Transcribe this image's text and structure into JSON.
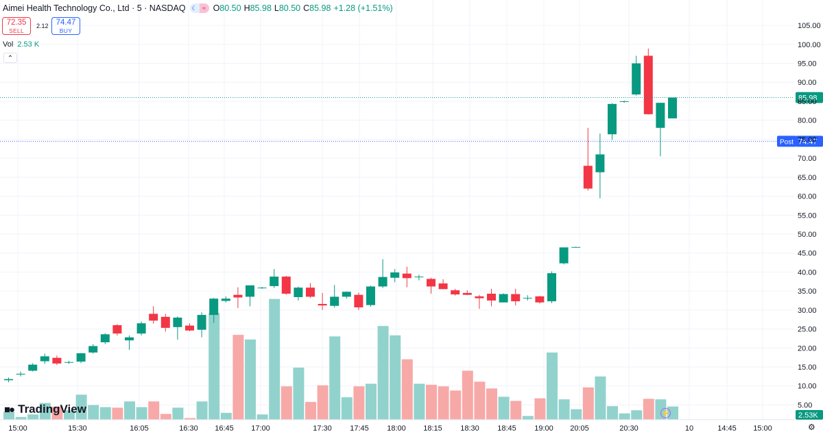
{
  "header": {
    "title": "Aimei Health Technology Co., Ltd · 5 · NASDAQ",
    "open_label": "O",
    "open": "80.50",
    "high_label": "H",
    "high": "85.98",
    "low_label": "L",
    "low": "80.50",
    "close_label": "C",
    "close": "85.98",
    "change": "+1.28 (+1.51%)"
  },
  "trade": {
    "sell_price": "72.35",
    "sell_label": "SELL",
    "spread": "2.12",
    "buy_price": "74.47",
    "buy_label": "BUY"
  },
  "volume_legend": {
    "label": "Vol",
    "value": "2.53 K"
  },
  "branding": {
    "name": "TradingView",
    "settings_icon": "gear-icon",
    "replay_icon": "lightning-icon"
  },
  "colors": {
    "up": "#089981",
    "down": "#f23645",
    "vol_up": "#92d2cc",
    "vol_down": "#f7a9a7",
    "post": "#2962ff"
  },
  "chart_data": {
    "type": "candlestick",
    "title": "Aimei Health Technology Co., Ltd · 5 · NASDAQ",
    "y_range": [
      4,
      107
    ],
    "y_ticks": [
      "105.00",
      "100.00",
      "95.00",
      "90.00",
      "85.00",
      "80.00",
      "75.00",
      "70.00",
      "65.00",
      "60.00",
      "55.00",
      "50.00",
      "45.00",
      "40.00",
      "35.00",
      "30.00",
      "25.00",
      "20.00",
      "15.00",
      "10.00",
      "5.00"
    ],
    "x_ticks": [
      "15:00",
      "15:30",
      "16:05",
      "16:30",
      "16:45",
      "17:00",
      "17:30",
      "17:45",
      "18:00",
      "18:15",
      "18:30",
      "18:45",
      "19:00",
      "20:05",
      "20:30",
      "10",
      "14:45",
      "15:00"
    ],
    "price_line": {
      "label": "85.98",
      "value": 85.98
    },
    "post_line": {
      "tag": "Post",
      "label": "74.47",
      "value": 74.47
    },
    "volume_label": "2.53K",
    "candles": [
      {
        "o": 11.5,
        "h": 12.2,
        "l": 11.0,
        "c": 11.8,
        "v": 1.5
      },
      {
        "o": 13.0,
        "h": 13.8,
        "l": 12.5,
        "c": 13.2,
        "v": 0.5
      },
      {
        "o": 14.0,
        "h": 16.0,
        "l": 13.8,
        "c": 15.6,
        "v": 1.0
      },
      {
        "o": 16.5,
        "h": 18.5,
        "l": 15.8,
        "c": 17.8,
        "v": 3.2
      },
      {
        "o": 17.4,
        "h": 18.0,
        "l": 15.5,
        "c": 15.9,
        "v": 2.5
      },
      {
        "o": 16.2,
        "h": 16.6,
        "l": 15.8,
        "c": 16.3,
        "v": 1.8
      },
      {
        "o": 16.4,
        "h": 18.7,
        "l": 16.0,
        "c": 18.6,
        "v": 4.8
      },
      {
        "o": 18.8,
        "h": 21.0,
        "l": 18.5,
        "c": 20.5,
        "v": 2.8
      },
      {
        "o": 21.5,
        "h": 23.9,
        "l": 21.0,
        "c": 23.6,
        "v": 2.4
      },
      {
        "o": 26.0,
        "h": 26.3,
        "l": 23.3,
        "c": 23.8,
        "v": 2.3
      },
      {
        "o": 22.0,
        "h": 23.3,
        "l": 19.5,
        "c": 22.8,
        "v": 3.5
      },
      {
        "o": 23.8,
        "h": 27.0,
        "l": 23.3,
        "c": 26.5,
        "v": 2.4
      },
      {
        "o": 29.0,
        "h": 31.0,
        "l": 26.4,
        "c": 27.2,
        "v": 3.5
      },
      {
        "o": 28.2,
        "h": 29.0,
        "l": 24.3,
        "c": 25.3,
        "v": 1.1
      },
      {
        "o": 25.5,
        "h": 28.3,
        "l": 22.2,
        "c": 28.0,
        "v": 2.3
      },
      {
        "o": 25.9,
        "h": 26.5,
        "l": 24.4,
        "c": 24.6,
        "v": 0.3
      },
      {
        "o": 24.8,
        "h": 29.4,
        "l": 22.8,
        "c": 28.7,
        "v": 3.5
      },
      {
        "o": 28.7,
        "h": 33.2,
        "l": 26.6,
        "c": 33.0,
        "v": 20.5
      },
      {
        "o": 32.4,
        "h": 33.6,
        "l": 32.0,
        "c": 33.0,
        "v": 1.3
      },
      {
        "o": 34.0,
        "h": 36.0,
        "l": 30.5,
        "c": 33.3,
        "v": 16.3
      },
      {
        "o": 33.5,
        "h": 36.3,
        "l": 31.0,
        "c": 36.5,
        "v": 15.4
      },
      {
        "o": 35.8,
        "h": 36.1,
        "l": 35.6,
        "c": 35.9,
        "v": 1.0
      },
      {
        "o": 36.3,
        "h": 40.8,
        "l": 35.8,
        "c": 38.8,
        "v": 23.2
      },
      {
        "o": 38.8,
        "h": 39.0,
        "l": 34.0,
        "c": 34.3,
        "v": 6.4
      },
      {
        "o": 33.4,
        "h": 36.2,
        "l": 32.5,
        "c": 35.9,
        "v": 10.0
      },
      {
        "o": 35.9,
        "h": 37.1,
        "l": 33.2,
        "c": 33.5,
        "v": 3.4
      },
      {
        "o": 31.6,
        "h": 34.5,
        "l": 30.0,
        "c": 31.2,
        "v": 6.6
      },
      {
        "o": 31.1,
        "h": 36.6,
        "l": 30.6,
        "c": 33.5,
        "v": 16.0
      },
      {
        "o": 33.5,
        "h": 34.9,
        "l": 33.0,
        "c": 34.8,
        "v": 4.3
      },
      {
        "o": 34.0,
        "h": 34.6,
        "l": 30.0,
        "c": 30.7,
        "v": 6.4
      },
      {
        "o": 31.3,
        "h": 36.4,
        "l": 30.9,
        "c": 36.2,
        "v": 6.9
      },
      {
        "o": 36.2,
        "h": 43.4,
        "l": 35.8,
        "c": 38.7,
        "v": 18.0
      },
      {
        "o": 38.5,
        "h": 40.8,
        "l": 37.3,
        "c": 39.9,
        "v": 16.2
      },
      {
        "o": 39.6,
        "h": 41.4,
        "l": 36.0,
        "c": 38.4,
        "v": 11.6
      },
      {
        "o": 38.7,
        "h": 39.3,
        "l": 37.8,
        "c": 38.8,
        "v": 6.9
      },
      {
        "o": 38.2,
        "h": 38.5,
        "l": 34.3,
        "c": 36.2,
        "v": 6.7
      },
      {
        "o": 37.0,
        "h": 38.1,
        "l": 35.7,
        "c": 35.5,
        "v": 6.4
      },
      {
        "o": 35.2,
        "h": 35.6,
        "l": 33.8,
        "c": 34.1,
        "v": 5.6
      },
      {
        "o": 34.5,
        "h": 35.2,
        "l": 33.9,
        "c": 34.0,
        "v": 9.4
      },
      {
        "o": 33.6,
        "h": 34.0,
        "l": 30.3,
        "c": 33.1,
        "v": 7.3
      },
      {
        "o": 34.3,
        "h": 35.6,
        "l": 31.0,
        "c": 32.5,
        "v": 6.0
      },
      {
        "o": 32.0,
        "h": 34.4,
        "l": 32.0,
        "c": 34.2,
        "v": 4.4
      },
      {
        "o": 34.2,
        "h": 35.6,
        "l": 31.2,
        "c": 32.3,
        "v": 3.6
      },
      {
        "o": 33.1,
        "h": 33.9,
        "l": 32.5,
        "c": 33.2,
        "v": 0.7
      },
      {
        "o": 33.6,
        "h": 33.7,
        "l": 31.7,
        "c": 32.0,
        "v": 4.1
      },
      {
        "o": 32.3,
        "h": 40.2,
        "l": 31.8,
        "c": 39.7,
        "v": 12.9
      },
      {
        "o": 42.3,
        "h": 46.5,
        "l": 42.0,
        "c": 46.5,
        "v": 3.9
      },
      {
        "o": 46.6,
        "h": 46.7,
        "l": 46.5,
        "c": 46.6,
        "v": 2.0
      },
      {
        "o": 68.0,
        "h": 78.0,
        "l": 61.5,
        "c": 62.0,
        "v": 6.2
      },
      {
        "o": 66.3,
        "h": 76.5,
        "l": 59.4,
        "c": 71.0,
        "v": 8.3
      },
      {
        "o": 76.3,
        "h": 84.5,
        "l": 74.8,
        "c": 84.3,
        "v": 2.6
      },
      {
        "o": 85.0,
        "h": 85.2,
        "l": 84.6,
        "c": 85.0,
        "v": 1.2
      },
      {
        "o": 86.8,
        "h": 97.0,
        "l": 86.5,
        "c": 95.0,
        "v": 1.8
      },
      {
        "o": 97.0,
        "h": 98.9,
        "l": 81.5,
        "c": 81.6,
        "v": 4.0
      },
      {
        "o": 78.0,
        "h": 84.6,
        "l": 70.5,
        "c": 84.6,
        "v": 3.9
      },
      {
        "o": 80.5,
        "h": 85.98,
        "l": 80.5,
        "c": 85.98,
        "v": 2.53
      }
    ]
  }
}
